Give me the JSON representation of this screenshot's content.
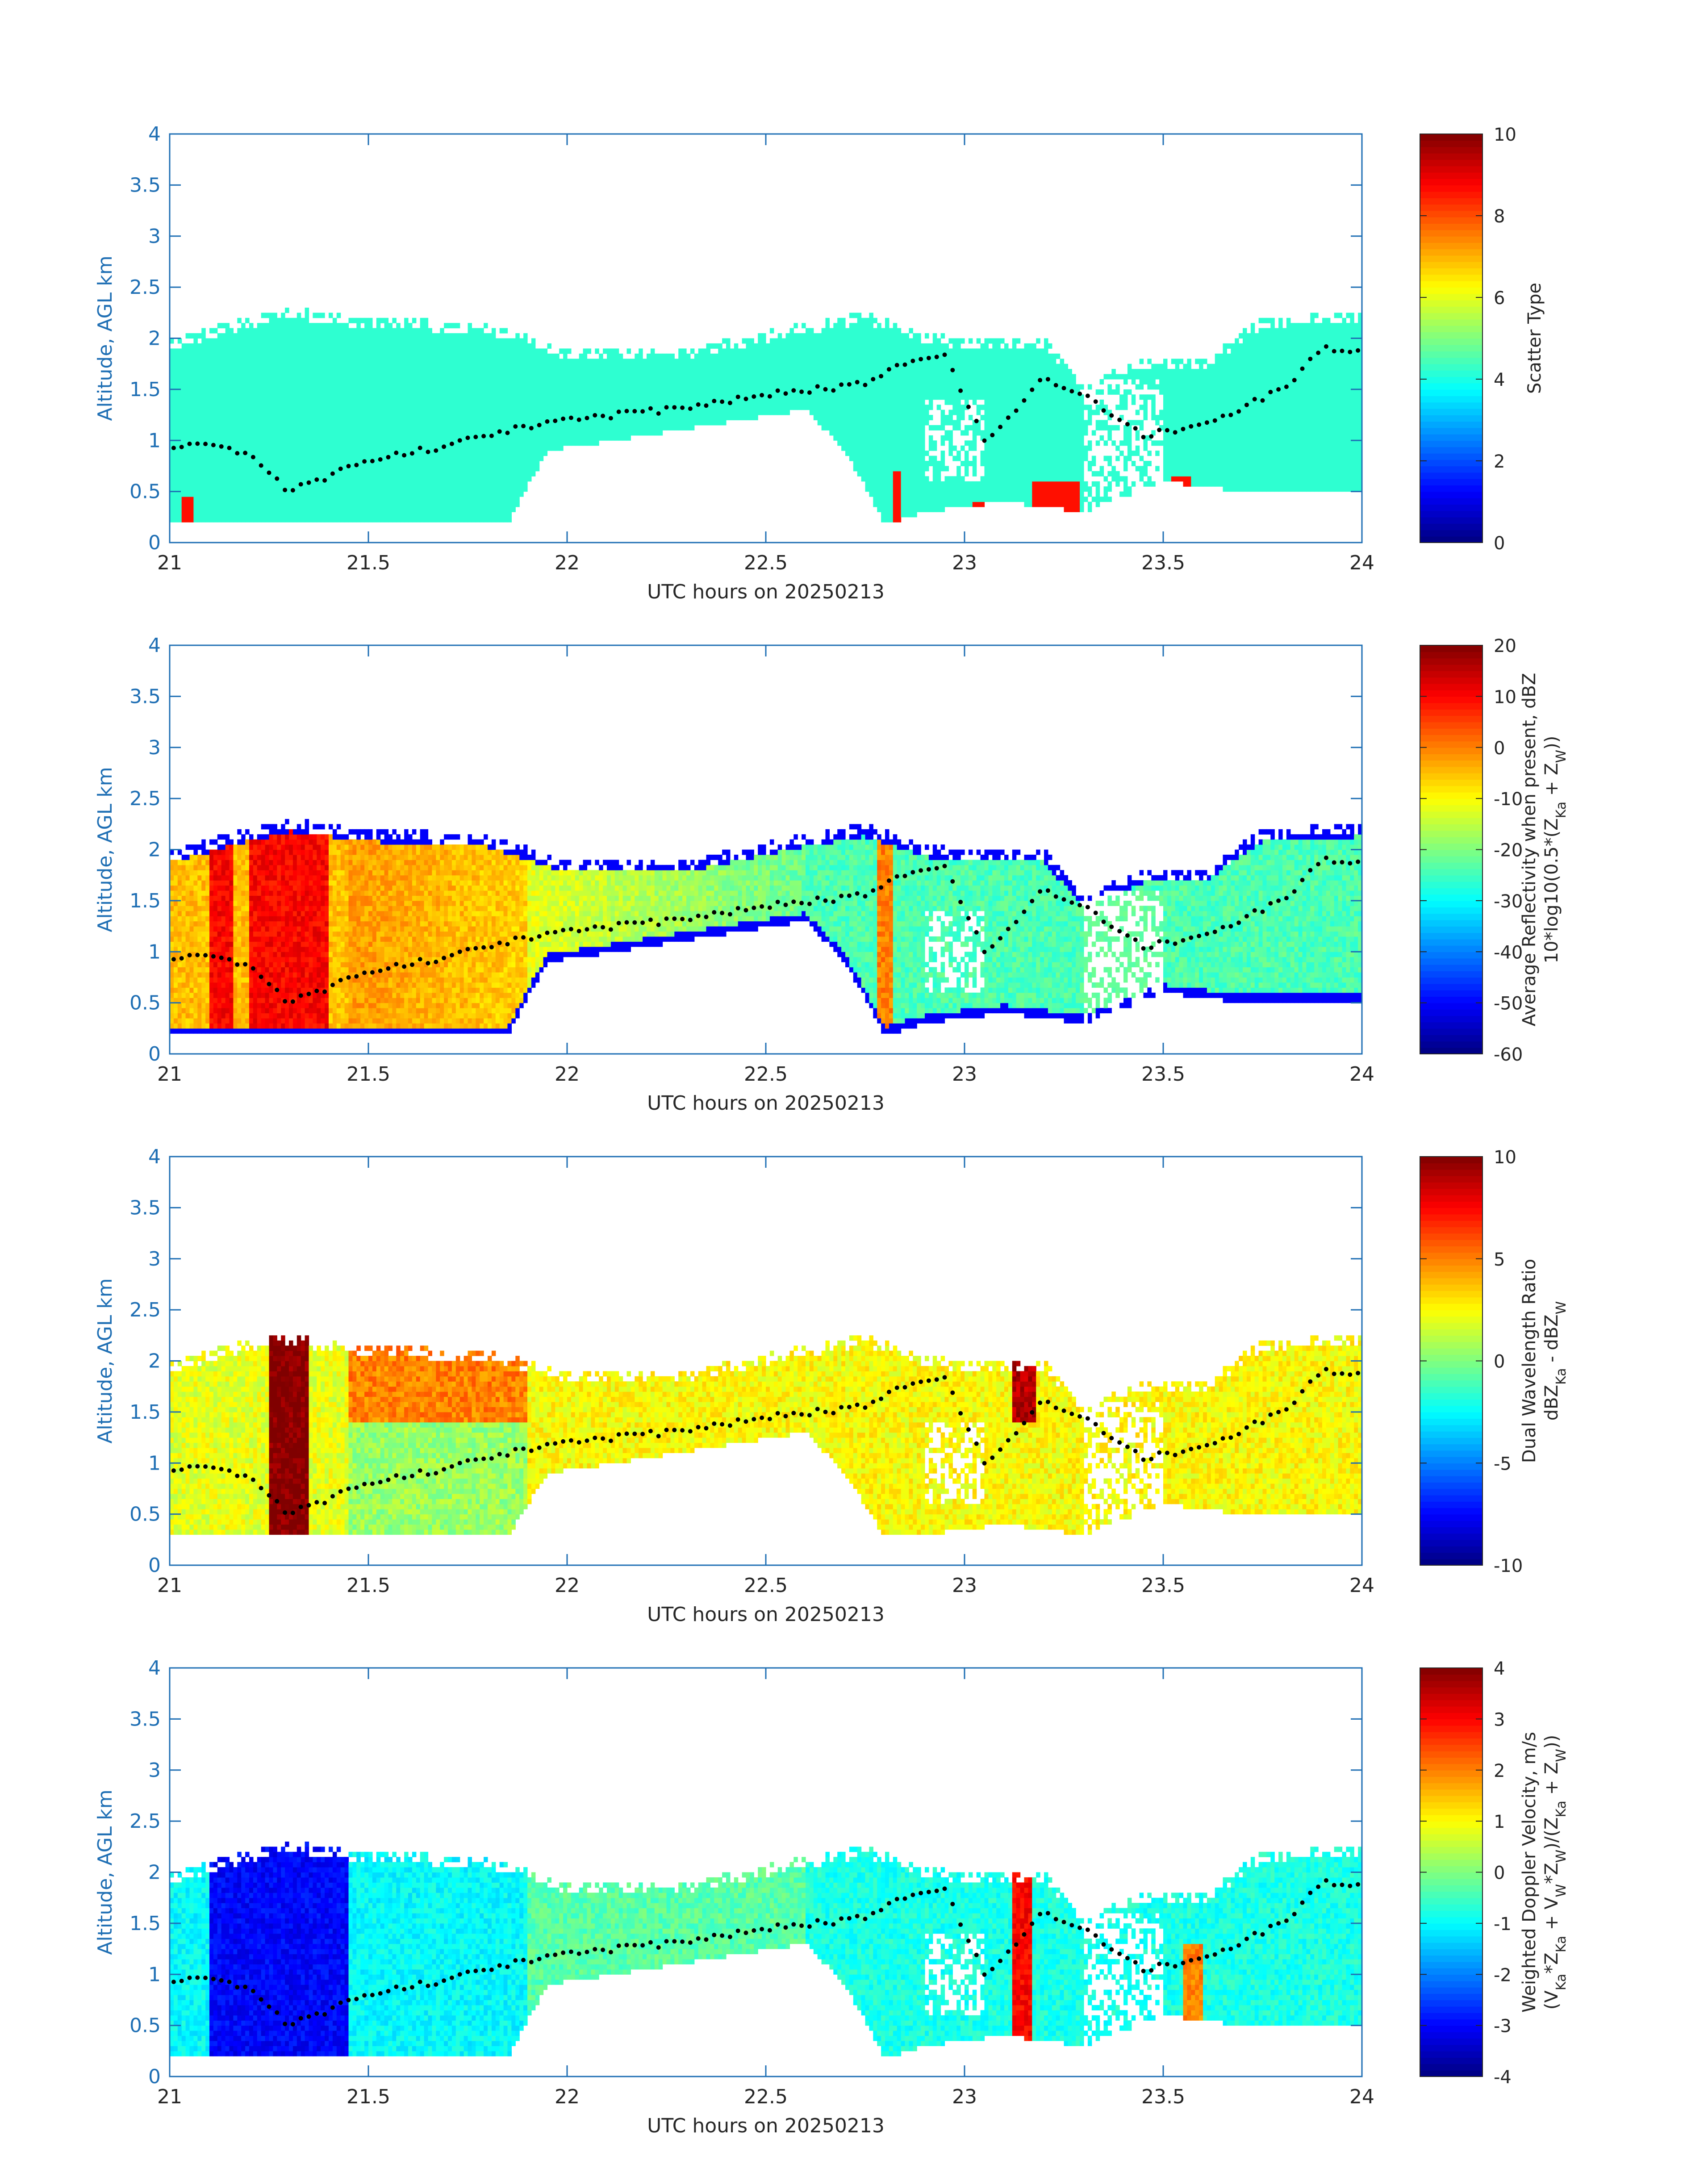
{
  "figure": {
    "date": "20250213"
  },
  "chart_data": [
    {
      "type": "heatmap",
      "title": "",
      "xlabel": "UTC hours on 20250213",
      "ylabel": "Altitude, AGL km",
      "xlim": [
        21,
        24
      ],
      "ylim": [
        0,
        4
      ],
      "xticks": [
        "21",
        "21.5",
        "22",
        "22.5",
        "23",
        "23.5",
        "24"
      ],
      "yticks": [
        "0",
        "0.5",
        "1",
        "1.5",
        "2",
        "2.5",
        "3",
        "3.5",
        "4"
      ],
      "colorbar": {
        "label_lines": [
          "Scatter Type"
        ],
        "min": 0,
        "max": 10,
        "ticks": [
          "0",
          "2",
          "4",
          "6",
          "8",
          "10"
        ]
      },
      "field_description": "Scatter type classification; cloud echo class ~4 (cyan), precipitation class ~8.5 (orange-red) in isolated columns near 22.8, 23.2 and 23.55 UTC",
      "echo_top_km": [
        [
          21.0,
          2.0
        ],
        [
          21.2,
          2.2
        ],
        [
          21.3,
          2.3
        ],
        [
          21.5,
          2.2
        ],
        [
          21.8,
          2.15
        ],
        [
          22.0,
          1.9
        ],
        [
          22.3,
          1.9
        ],
        [
          22.6,
          2.15
        ],
        [
          22.75,
          2.25
        ],
        [
          22.9,
          2.05
        ],
        [
          23.0,
          2.0
        ],
        [
          23.2,
          2.0
        ],
        [
          23.3,
          1.55
        ],
        [
          23.45,
          1.8
        ],
        [
          23.6,
          1.8
        ],
        [
          23.75,
          2.2
        ],
        [
          24.0,
          2.25
        ]
      ],
      "cloud_base_km": [
        [
          21.0,
          0.18
        ],
        [
          21.85,
          0.18
        ],
        [
          21.95,
          0.9
        ],
        [
          22.2,
          1.05
        ],
        [
          22.6,
          1.3
        ],
        [
          22.7,
          0.9
        ],
        [
          22.8,
          0.18
        ],
        [
          22.9,
          0.3
        ],
        [
          23.1,
          0.4
        ],
        [
          23.3,
          0.3
        ],
        [
          23.5,
          0.6
        ],
        [
          23.7,
          0.5
        ],
        [
          24.0,
          0.5
        ]
      ],
      "black_dots_km": [
        [
          21.0,
          0.95
        ],
        [
          21.1,
          0.95
        ],
        [
          21.2,
          0.85
        ],
        [
          21.3,
          0.5
        ],
        [
          21.5,
          0.8
        ],
        [
          21.7,
          0.95
        ],
        [
          21.85,
          1.1
        ],
        [
          22.0,
          1.2
        ],
        [
          22.25,
          1.3
        ],
        [
          22.5,
          1.45
        ],
        [
          22.75,
          1.55
        ],
        [
          22.85,
          1.75
        ],
        [
          22.95,
          1.85
        ],
        [
          23.05,
          1.0
        ],
        [
          23.2,
          1.6
        ],
        [
          23.3,
          1.45
        ],
        [
          23.45,
          1.05
        ],
        [
          23.6,
          1.15
        ],
        [
          23.8,
          1.5
        ],
        [
          23.9,
          1.9
        ],
        [
          24.0,
          1.85
        ]
      ]
    },
    {
      "type": "heatmap",
      "title": "",
      "xlabel": "UTC hours on 20250213",
      "ylabel": "Altitude, AGL km",
      "xlim": [
        21,
        24
      ],
      "ylim": [
        0,
        4
      ],
      "xticks": [
        "21",
        "21.5",
        "22",
        "22.5",
        "23",
        "23.5",
        "24"
      ],
      "yticks": [
        "0",
        "0.5",
        "1",
        "1.5",
        "2",
        "2.5",
        "3",
        "3.5",
        "4"
      ],
      "colorbar": {
        "label_lines": [
          "Average Reflectivity when present, dBZ",
          "10*log10(0.5*(Z",
          "Ka",
          " + Z",
          "W",
          "))"
        ],
        "min": -60,
        "max": 20,
        "ticks": [
          "-60",
          "-50",
          "-40",
          "-30",
          "-20",
          "-10",
          "0",
          "10",
          "20"
        ]
      },
      "field_description": "Reflectivity up to ~15 dBZ in precipitation shafts near 21.3 UTC, ~0 dBZ around 21.5-21.8 UTC, decreasing to -20..-30 dBZ after 22 UTC; -50..-60 dBZ fringes at cloud edges",
      "echo_top_km": [
        [
          21.0,
          2.0
        ],
        [
          21.2,
          2.2
        ],
        [
          21.3,
          2.3
        ],
        [
          21.5,
          2.2
        ],
        [
          21.8,
          2.15
        ],
        [
          22.0,
          1.9
        ],
        [
          22.3,
          1.9
        ],
        [
          22.6,
          2.15
        ],
        [
          22.75,
          2.25
        ],
        [
          22.9,
          2.05
        ],
        [
          23.0,
          2.0
        ],
        [
          23.2,
          2.0
        ],
        [
          23.3,
          1.55
        ],
        [
          23.45,
          1.8
        ],
        [
          23.6,
          1.8
        ],
        [
          23.75,
          2.2
        ],
        [
          24.0,
          2.25
        ]
      ],
      "cloud_base_km": [
        [
          21.0,
          0.18
        ],
        [
          21.85,
          0.18
        ],
        [
          21.95,
          0.9
        ],
        [
          22.2,
          1.05
        ],
        [
          22.6,
          1.3
        ],
        [
          22.7,
          0.9
        ],
        [
          22.8,
          0.18
        ],
        [
          22.9,
          0.3
        ],
        [
          23.1,
          0.4
        ],
        [
          23.3,
          0.3
        ],
        [
          23.5,
          0.6
        ],
        [
          23.7,
          0.5
        ],
        [
          24.0,
          0.5
        ]
      ],
      "black_dots_km": [
        [
          21.0,
          0.95
        ],
        [
          21.1,
          0.95
        ],
        [
          21.2,
          0.85
        ],
        [
          21.3,
          0.5
        ],
        [
          21.5,
          0.8
        ],
        [
          21.7,
          0.95
        ],
        [
          21.85,
          1.1
        ],
        [
          22.0,
          1.2
        ],
        [
          22.25,
          1.3
        ],
        [
          22.5,
          1.45
        ],
        [
          22.75,
          1.55
        ],
        [
          22.85,
          1.75
        ],
        [
          22.95,
          1.85
        ],
        [
          23.05,
          1.0
        ],
        [
          23.2,
          1.6
        ],
        [
          23.3,
          1.45
        ],
        [
          23.45,
          1.05
        ],
        [
          23.6,
          1.15
        ],
        [
          23.8,
          1.5
        ],
        [
          23.9,
          1.9
        ],
        [
          24.0,
          1.85
        ]
      ]
    },
    {
      "type": "heatmap",
      "title": "",
      "xlabel": "UTC hours on 20250213",
      "ylabel": "Altitude, AGL km",
      "xlim": [
        21,
        24
      ],
      "ylim": [
        0,
        4
      ],
      "xticks": [
        "21",
        "21.5",
        "22",
        "22.5",
        "23",
        "23.5",
        "24"
      ],
      "yticks": [
        "0",
        "0.5",
        "1",
        "1.5",
        "2",
        "2.5",
        "3",
        "3.5",
        "4"
      ],
      "colorbar": {
        "label_lines": [
          "Dual Wavelength Ratio",
          "dBZ",
          "Ka",
          " - dBZ",
          "W"
        ],
        "min": -10,
        "max": 10,
        "ticks": [
          "-10",
          "-5",
          "0",
          "5",
          "10"
        ]
      },
      "field_description": "DWR ~10 dB in the precipitation shaft at 21.3 UTC, ~5 dB in the upper cloud near 21.6 UTC, ~2 dB elsewhere, ~0 dB near cloud base",
      "echo_top_km": [
        [
          21.0,
          2.0
        ],
        [
          21.2,
          2.2
        ],
        [
          21.3,
          2.25
        ],
        [
          21.5,
          2.15
        ],
        [
          21.8,
          2.1
        ],
        [
          22.0,
          1.9
        ],
        [
          22.3,
          1.9
        ],
        [
          22.6,
          2.15
        ],
        [
          22.75,
          2.25
        ],
        [
          22.9,
          2.05
        ],
        [
          23.0,
          2.0
        ],
        [
          23.2,
          2.0
        ],
        [
          23.3,
          1.55
        ],
        [
          23.45,
          1.8
        ],
        [
          23.6,
          1.8
        ],
        [
          23.75,
          2.2
        ],
        [
          24.0,
          2.25
        ]
      ],
      "cloud_base_km": [
        [
          21.0,
          0.28
        ],
        [
          21.85,
          0.28
        ],
        [
          21.95,
          0.9
        ],
        [
          22.2,
          1.05
        ],
        [
          22.6,
          1.3
        ],
        [
          22.7,
          0.9
        ],
        [
          22.8,
          0.28
        ],
        [
          22.9,
          0.3
        ],
        [
          23.1,
          0.4
        ],
        [
          23.3,
          0.3
        ],
        [
          23.5,
          0.6
        ],
        [
          23.7,
          0.5
        ],
        [
          24.0,
          0.5
        ]
      ],
      "black_dots_km": [
        [
          21.0,
          0.95
        ],
        [
          21.1,
          0.95
        ],
        [
          21.2,
          0.85
        ],
        [
          21.3,
          0.5
        ],
        [
          21.5,
          0.8
        ],
        [
          21.7,
          0.95
        ],
        [
          21.85,
          1.1
        ],
        [
          22.0,
          1.2
        ],
        [
          22.25,
          1.3
        ],
        [
          22.5,
          1.45
        ],
        [
          22.75,
          1.55
        ],
        [
          22.85,
          1.75
        ],
        [
          22.95,
          1.85
        ],
        [
          23.05,
          1.0
        ],
        [
          23.2,
          1.6
        ],
        [
          23.3,
          1.45
        ],
        [
          23.45,
          1.05
        ],
        [
          23.6,
          1.15
        ],
        [
          23.8,
          1.5
        ],
        [
          23.9,
          1.9
        ],
        [
          24.0,
          1.85
        ]
      ]
    },
    {
      "type": "heatmap",
      "title": "",
      "xlabel": "UTC hours on 20250213",
      "ylabel": "Altitude, AGL km",
      "xlim": [
        21,
        24
      ],
      "ylim": [
        0,
        4
      ],
      "xticks": [
        "21",
        "21.5",
        "22",
        "22.5",
        "23",
        "23.5",
        "24"
      ],
      "yticks": [
        "0",
        "0.5",
        "1",
        "1.5",
        "2",
        "2.5",
        "3",
        "3.5",
        "4"
      ],
      "colorbar": {
        "label_lines": [
          "Weighted Doppler Velocity, m/s",
          "(V",
          "Ka",
          "*Z",
          "Ka",
          " + V",
          "W",
          "*Z",
          "W",
          ")/(Z",
          "Ka",
          " + Z",
          "W",
          "))"
        ],
        "min": -4,
        "max": 4,
        "ticks": [
          "-4",
          "-3",
          "-2",
          "-1",
          "0",
          "1",
          "2",
          "3",
          "4"
        ]
      },
      "field_description": "Doppler velocity about -3 m/s in the 21.3 UTC fallstreak, -1 m/s typical, near 0 m/s after 22 UTC, +3 m/s updraft near 23.15 UTC",
      "echo_top_km": [
        [
          21.0,
          2.0
        ],
        [
          21.2,
          2.2
        ],
        [
          21.3,
          2.3
        ],
        [
          21.5,
          2.2
        ],
        [
          21.8,
          2.15
        ],
        [
          22.0,
          1.9
        ],
        [
          22.3,
          1.9
        ],
        [
          22.6,
          2.15
        ],
        [
          22.75,
          2.25
        ],
        [
          22.9,
          2.05
        ],
        [
          23.0,
          2.0
        ],
        [
          23.2,
          2.0
        ],
        [
          23.3,
          1.55
        ],
        [
          23.45,
          1.8
        ],
        [
          23.6,
          1.8
        ],
        [
          23.75,
          2.2
        ],
        [
          24.0,
          2.25
        ]
      ],
      "cloud_base_km": [
        [
          21.0,
          0.18
        ],
        [
          21.85,
          0.18
        ],
        [
          21.95,
          0.9
        ],
        [
          22.2,
          1.05
        ],
        [
          22.6,
          1.3
        ],
        [
          22.7,
          0.9
        ],
        [
          22.8,
          0.18
        ],
        [
          22.9,
          0.3
        ],
        [
          23.1,
          0.4
        ],
        [
          23.3,
          0.3
        ],
        [
          23.5,
          0.6
        ],
        [
          23.7,
          0.5
        ],
        [
          24.0,
          0.5
        ]
      ],
      "black_dots_km": [
        [
          21.0,
          0.95
        ],
        [
          21.1,
          0.95
        ],
        [
          21.2,
          0.85
        ],
        [
          21.3,
          0.5
        ],
        [
          21.5,
          0.8
        ],
        [
          21.7,
          0.95
        ],
        [
          21.85,
          1.1
        ],
        [
          22.0,
          1.2
        ],
        [
          22.25,
          1.3
        ],
        [
          22.5,
          1.45
        ],
        [
          22.75,
          1.55
        ],
        [
          22.85,
          1.75
        ],
        [
          22.95,
          1.85
        ],
        [
          23.05,
          1.0
        ],
        [
          23.2,
          1.6
        ],
        [
          23.3,
          1.45
        ],
        [
          23.45,
          1.05
        ],
        [
          23.6,
          1.15
        ],
        [
          23.8,
          1.5
        ],
        [
          23.9,
          1.9
        ],
        [
          24.0,
          1.85
        ]
      ]
    }
  ]
}
